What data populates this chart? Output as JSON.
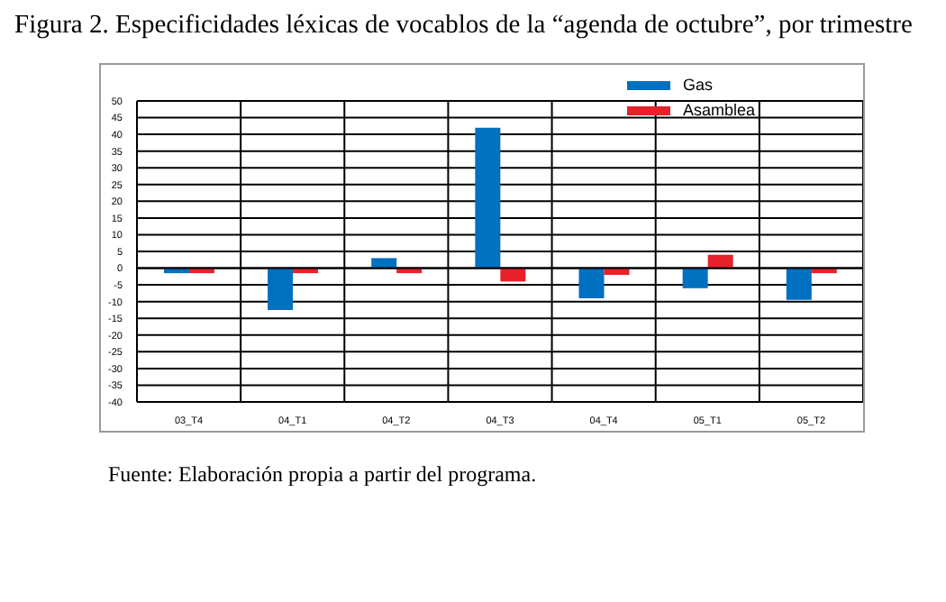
{
  "chart_data": {
    "type": "bar",
    "title": "Figura 2. Especificidades léxicas de vocablos de la “agenda de octubre”, por trimestre",
    "categories": [
      "03_T4",
      "04_T1",
      "04_T2",
      "04_T3",
      "04_T4",
      "05_T1",
      "05_T2"
    ],
    "series": [
      {
        "name": "Gas",
        "color": "#0070c0",
        "values": [
          -1.5,
          -12.5,
          3,
          42,
          -9,
          -6,
          -9.5
        ]
      },
      {
        "name": "Asamblea",
        "color": "#e8202a",
        "values": [
          -1.5,
          -1.5,
          -1.5,
          -4,
          -2,
          4,
          -1.5
        ]
      }
    ],
    "ylim": [
      -40,
      50
    ],
    "yticks": [
      -40,
      -35,
      -30,
      -25,
      -20,
      -15,
      -10,
      -5,
      0,
      5,
      10,
      15,
      20,
      25,
      30,
      35,
      40,
      45,
      50
    ],
    "grid": true,
    "legend": "top right",
    "annotations": [
      "Fuente: Elaboración propia a partir del programa."
    ]
  }
}
